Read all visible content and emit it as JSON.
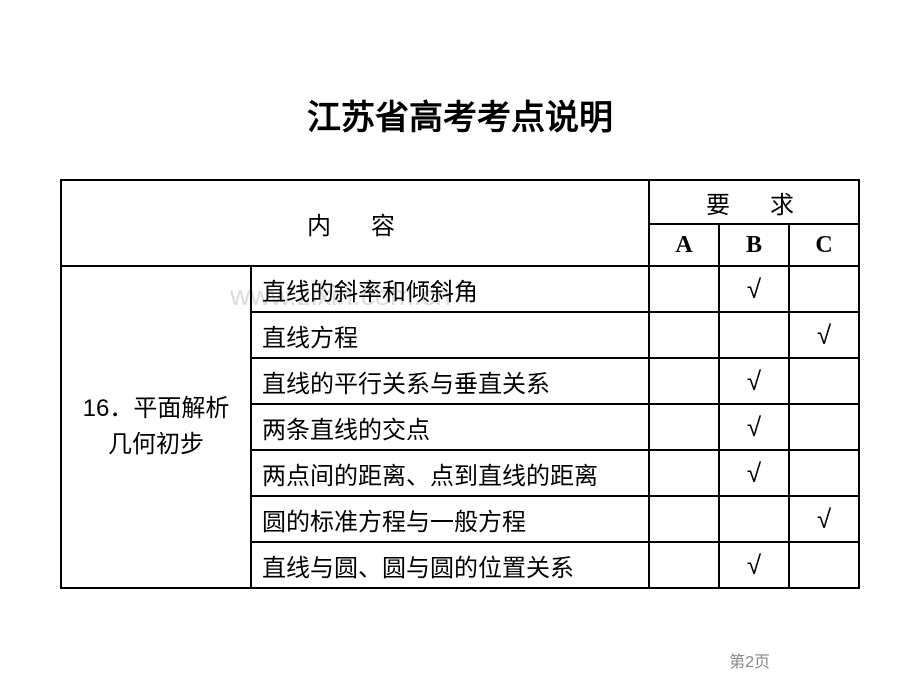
{
  "title": "江苏省高考考点说明",
  "watermark": "www.zixin.com.cn",
  "headers": {
    "content": "内　容",
    "requirement": "要　求",
    "colA": "A",
    "colB": "B",
    "colC": "C"
  },
  "section": {
    "number": "16．",
    "name1": "平面解析",
    "name2": "几何初步"
  },
  "rows": [
    {
      "topic": "直线的斜率和倾斜角",
      "a": "",
      "b": "√",
      "c": ""
    },
    {
      "topic": "直线方程",
      "a": "",
      "b": "",
      "c": "√"
    },
    {
      "topic": "直线的平行关系与垂直关系",
      "a": "",
      "b": "√",
      "c": ""
    },
    {
      "topic": "两条直线的交点",
      "a": "",
      "b": "√",
      "c": ""
    },
    {
      "topic": "两点间的距离、点到直线的距离",
      "a": "",
      "b": "√",
      "c": ""
    },
    {
      "topic": "圆的标准方程与一般方程",
      "a": "",
      "b": "",
      "c": "√"
    },
    {
      "topic": "直线与圆、圆与圆的位置关系",
      "a": "",
      "b": "√",
      "c": ""
    }
  ],
  "pageNumber": "第2页"
}
